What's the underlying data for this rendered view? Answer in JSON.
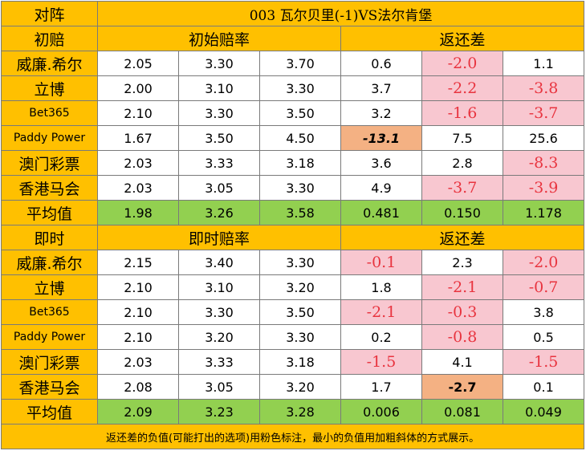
{
  "header": {
    "col_label": "对阵",
    "match": "003  瓦尔贝里(-1)VS法尔肯堡"
  },
  "initial": {
    "section_label": "初赔",
    "odds_label": "初始赔率",
    "return_label": "返还差",
    "rows": [
      {
        "bookmaker": "威廉.希尔",
        "odds": [
          "2.05",
          "3.30",
          "3.70"
        ],
        "diffs": [
          "0.6",
          "-2.0",
          "1.1"
        ]
      },
      {
        "bookmaker": "立博",
        "odds": [
          "2.00",
          "3.10",
          "3.30"
        ],
        "diffs": [
          "3.7",
          "-2.2",
          "-3.8"
        ]
      },
      {
        "bookmaker": "Bet365",
        "odds": [
          "2.10",
          "3.30",
          "3.50"
        ],
        "diffs": [
          "3.2",
          "-1.6",
          "-3.7"
        ]
      },
      {
        "bookmaker": "Paddy Power",
        "odds": [
          "1.67",
          "3.50",
          "4.50"
        ],
        "diffs": [
          "-13.1",
          "7.5",
          "25.6"
        ]
      },
      {
        "bookmaker": "澳门彩票",
        "odds": [
          "2.03",
          "3.33",
          "3.18"
        ],
        "diffs": [
          "3.6",
          "2.8",
          "-8.3"
        ]
      },
      {
        "bookmaker": "香港马会",
        "odds": [
          "2.03",
          "3.05",
          "3.30"
        ],
        "diffs": [
          "4.9",
          "-3.7",
          "-3.9"
        ]
      }
    ],
    "average": {
      "label": "平均值",
      "odds": [
        "1.98",
        "3.26",
        "3.58"
      ],
      "diffs": [
        "0.481",
        "0.150",
        "1.178"
      ]
    }
  },
  "live": {
    "section_label": "即时",
    "odds_label": "即时赔率",
    "return_label": "返还差",
    "rows": [
      {
        "bookmaker": "威廉.希尔",
        "odds": [
          "2.15",
          "3.40",
          "3.30"
        ],
        "diffs": [
          "-0.1",
          "2.3",
          "-2.0"
        ]
      },
      {
        "bookmaker": "立博",
        "odds": [
          "2.10",
          "3.10",
          "3.20"
        ],
        "diffs": [
          "1.8",
          "-2.1",
          "-0.7"
        ]
      },
      {
        "bookmaker": "Bet365",
        "odds": [
          "2.10",
          "3.30",
          "3.50"
        ],
        "diffs": [
          "-2.1",
          "-0.3",
          "3.8"
        ]
      },
      {
        "bookmaker": "Paddy Power",
        "odds": [
          "2.10",
          "3.20",
          "3.30"
        ],
        "diffs": [
          "0.2",
          "-0.8",
          "0.5"
        ]
      },
      {
        "bookmaker": "澳门彩票",
        "odds": [
          "2.03",
          "3.33",
          "3.18"
        ],
        "diffs": [
          "-1.5",
          "4.1",
          "-1.5"
        ]
      },
      {
        "bookmaker": "香港马会",
        "odds": [
          "2.08",
          "3.05",
          "3.20"
        ],
        "diffs": [
          "1.7",
          "-2.7",
          "0.1"
        ]
      }
    ],
    "average": {
      "label": "平均值",
      "odds": [
        "2.09",
        "3.23",
        "3.28"
      ],
      "diffs": [
        "0.006",
        "0.081",
        "0.049"
      ]
    }
  },
  "footer": {
    "note": "返还差的负值(可能打出的选项)用粉色标注，最小的负值用加粗斜体的方式展示。"
  },
  "colors": {
    "gold": "#ffc000",
    "green": "#92d050",
    "pink": "#f8c7d0",
    "pink_text": "#e8343f",
    "orange": "#f4b183"
  }
}
